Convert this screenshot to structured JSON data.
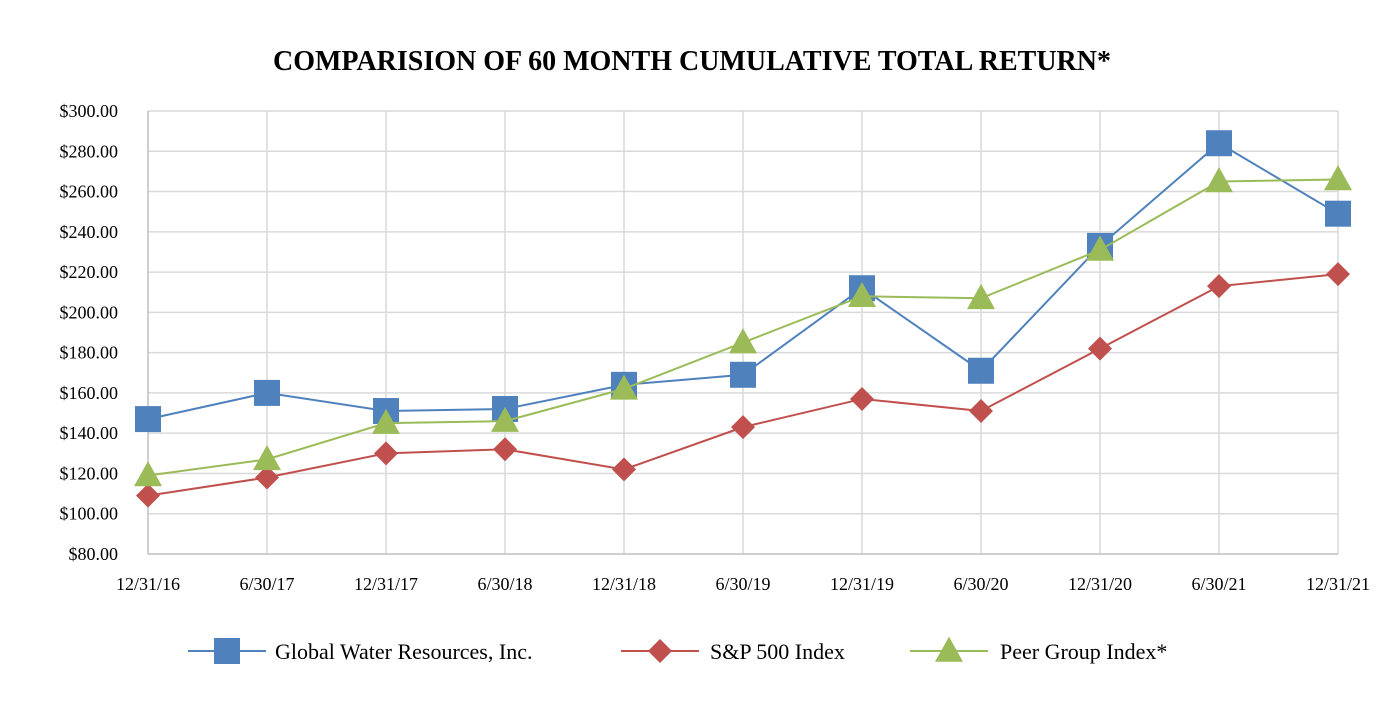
{
  "chart_data": {
    "type": "line",
    "title": "COMPARISION OF 60 MONTH CUMULATIVE TOTAL RETURN*",
    "xlabel": "",
    "ylabel": "",
    "categories": [
      "12/31/16",
      "6/30/17",
      "12/31/17",
      "6/30/18",
      "12/31/18",
      "6/30/19",
      "12/31/19",
      "6/30/20",
      "12/31/20",
      "6/30/21",
      "12/31/21"
    ],
    "ylim": [
      80,
      300
    ],
    "yticks": [
      80,
      100,
      120,
      140,
      160,
      180,
      200,
      220,
      240,
      260,
      280,
      300
    ],
    "ytick_labels": [
      "$80.00",
      "$100.00",
      "$120.00",
      "$140.00",
      "$160.00",
      "$180.00",
      "$200.00",
      "$220.00",
      "$240.00",
      "$260.00",
      "$280.00",
      "$300.00"
    ],
    "grid": true,
    "legend_position": "bottom",
    "series": [
      {
        "name": "Global Water Resources, Inc.",
        "color": "#4f81bd",
        "marker": "square",
        "values": [
          147,
          160,
          151,
          152,
          164,
          169,
          212,
          171,
          233,
          284,
          249
        ]
      },
      {
        "name": "S&P 500 Index",
        "color": "#c0504d",
        "marker": "diamond",
        "values": [
          109,
          118,
          130,
          132,
          122,
          143,
          157,
          151,
          182,
          213,
          219
        ]
      },
      {
        "name": "Peer Group Index*",
        "color": "#9bbb59",
        "marker": "triangle",
        "values": [
          119,
          127,
          145,
          146,
          162,
          185,
          208,
          207,
          231,
          265,
          266
        ]
      }
    ]
  }
}
